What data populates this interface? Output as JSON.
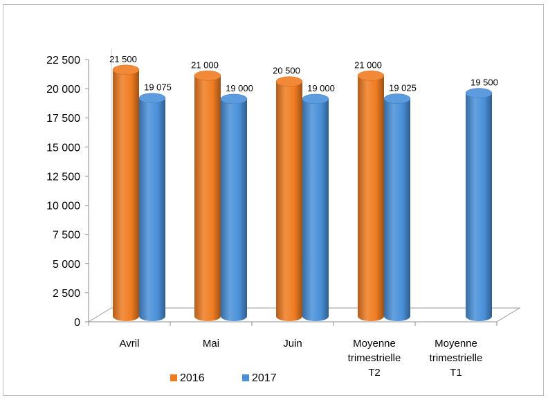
{
  "chart_data": {
    "type": "bar",
    "categories": [
      "Avril",
      "Mai",
      "Juin",
      "Moyenne trimestrielle T2",
      "Moyenne trimestrielle T1"
    ],
    "category_lines": [
      [
        "Avril"
      ],
      [
        "Mai"
      ],
      [
        "Juin"
      ],
      [
        "Moyenne",
        "trimestrielle",
        "T2"
      ],
      [
        "Moyenne",
        "trimestrielle",
        "T1"
      ]
    ],
    "series": [
      {
        "name": "2016",
        "color": "#f07c22",
        "values": [
          21500,
          21000,
          20500,
          21000,
          null
        ],
        "labels": [
          "21 500",
          "21 000",
          "20 500",
          "21 000",
          ""
        ]
      },
      {
        "name": "2017",
        "color": "#4a90d9",
        "values": [
          19075,
          19000,
          19000,
          19025,
          19500
        ],
        "labels": [
          "19 075",
          "19 000",
          "19 000",
          "19 025",
          "19 500"
        ]
      }
    ],
    "y_ticks": [
      0,
      2500,
      5000,
      7500,
      10000,
      12500,
      15000,
      17500,
      20000,
      22500
    ],
    "y_tick_labels": [
      "0",
      "2 500",
      "5 000",
      "7 500",
      "10 000",
      "12 500",
      "15 000",
      "17 500",
      "20 000",
      "22 500"
    ],
    "ylim": [
      0,
      22500
    ],
    "title": "",
    "xlabel": "",
    "ylabel": "",
    "legend_position": "bottom-left",
    "grid": false,
    "style": "3d-cylinder"
  }
}
